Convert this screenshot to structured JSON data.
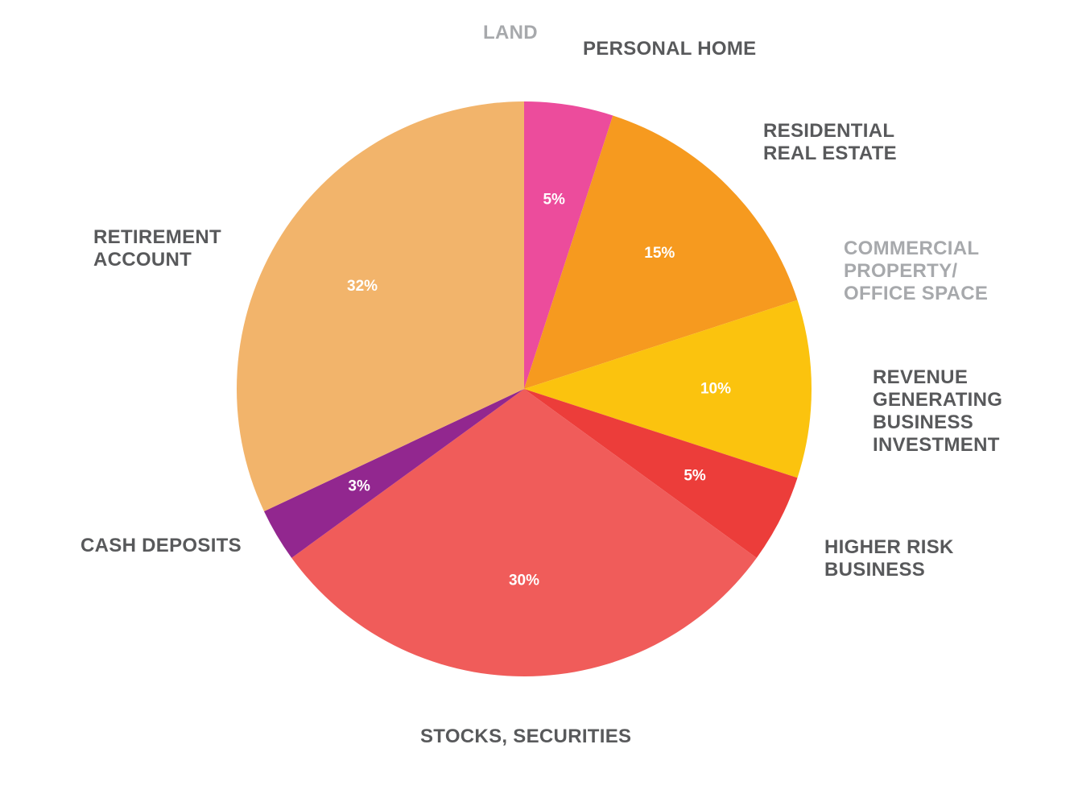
{
  "chart_data": {
    "type": "pie",
    "title": "",
    "slices": [
      {
        "label": "LAND",
        "lines": [
          "LAND"
        ],
        "value": 0,
        "value_label": "",
        "color": "#ffffff",
        "muted": true
      },
      {
        "label": "PERSONAL HOME",
        "lines": [
          "PERSONAL HOME"
        ],
        "value": 5,
        "value_label": "5%",
        "color": "#ec4c9c",
        "muted": false
      },
      {
        "label": "RESIDENTIAL REAL ESTATE",
        "lines": [
          "RESIDENTIAL",
          "REAL ESTATE"
        ],
        "value": 15,
        "value_label": "15%",
        "color": "#f69a1f",
        "muted": false
      },
      {
        "label": "COMMERCIAL PROPERTY/ OFFICE SPACE",
        "lines": [
          "COMMERCIAL",
          "PROPERTY/",
          "OFFICE SPACE"
        ],
        "value": 0,
        "value_label": "",
        "color": "#ffffff",
        "muted": true
      },
      {
        "label": "REVENUE GENERATING BUSINESS INVESTMENT",
        "lines": [
          "REVENUE",
          "GENERATING",
          "BUSINESS",
          "INVESTMENT"
        ],
        "value": 10,
        "value_label": "10%",
        "color": "#fbc30e",
        "muted": false
      },
      {
        "label": "HIGHER RISK BUSINESS",
        "lines": [
          "HIGHER RISK",
          "BUSINESS"
        ],
        "value": 5,
        "value_label": "5%",
        "color": "#ec3d3a",
        "muted": false
      },
      {
        "label": "STOCKS, SECURITIES",
        "lines": [
          "STOCKS, SECURITIES"
        ],
        "value": 30,
        "value_label": "30%",
        "color": "#f05c5a",
        "muted": false
      },
      {
        "label": "CASH DEPOSITS",
        "lines": [
          "CASH DEPOSITS"
        ],
        "value": 3,
        "value_label": "3%",
        "color": "#92278f",
        "muted": false
      },
      {
        "label": "RETIREMENT ACCOUNT",
        "lines": [
          "RETIREMENT",
          "ACCOUNT"
        ],
        "value": 32,
        "value_label": "32%",
        "color": "#f2b46b",
        "muted": false
      }
    ]
  }
}
